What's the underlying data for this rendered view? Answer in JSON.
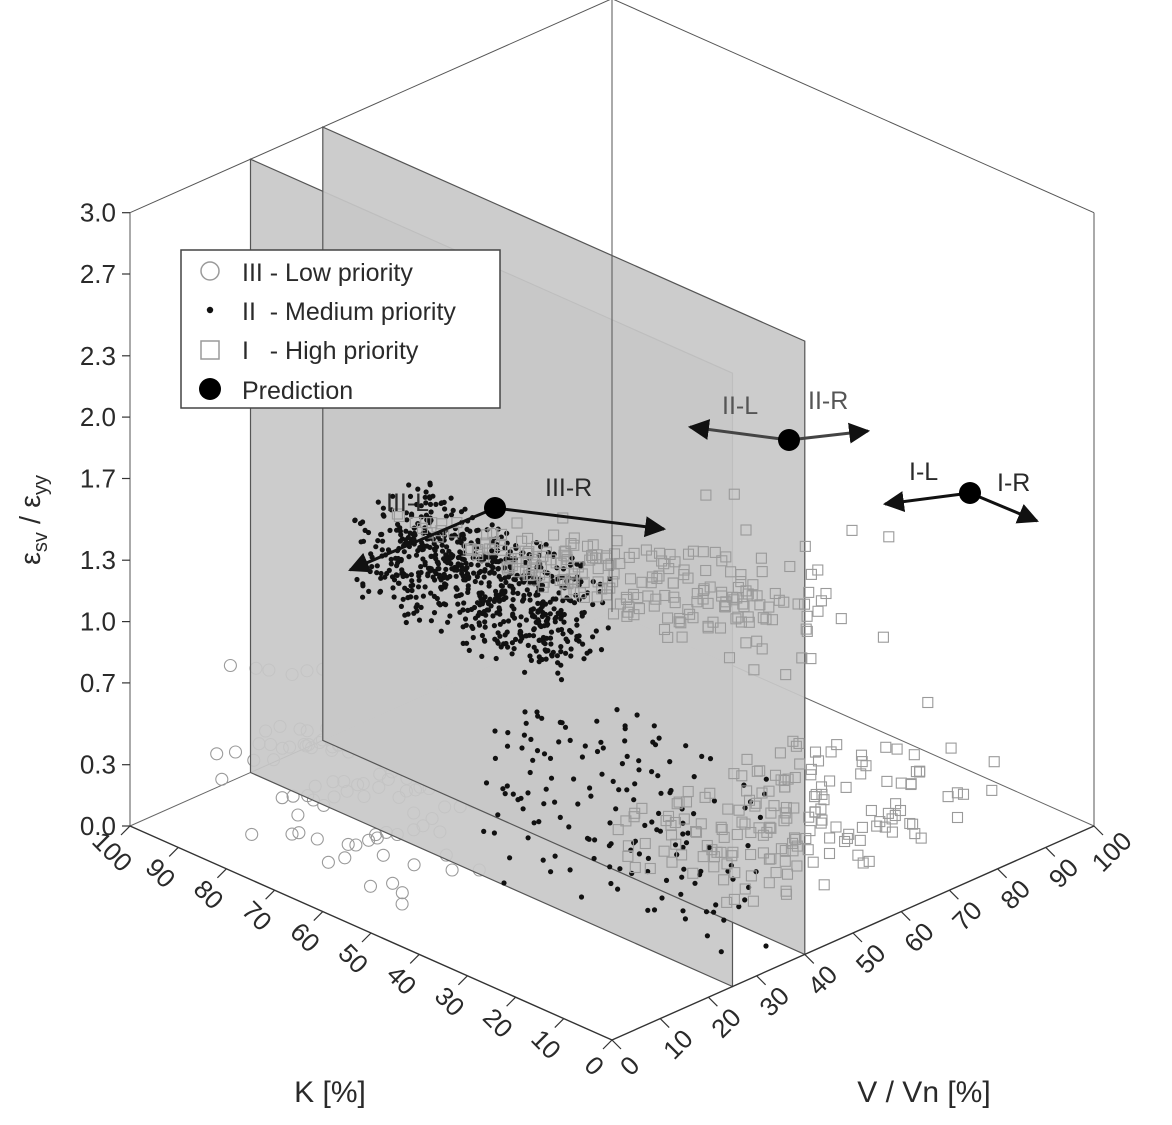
{
  "chart_data": {
    "type": "scatter",
    "projection": "3d-isometric",
    "zlabel": {
      "main": "ε",
      "sub1": "sv",
      "sep": " / ε",
      "sub2": "yy"
    },
    "xlabel": "K [%]",
    "ylabel": "V / Vn [%]",
    "z_ticks": [
      "0.0",
      "0.3",
      "0.7",
      "1.0",
      "1.3",
      "1.7",
      "2.0",
      "2.3",
      "2.7",
      "3.0"
    ],
    "k_ticks": [
      "0",
      "10",
      "20",
      "30",
      "40",
      "50",
      "60",
      "70",
      "80",
      "90",
      "100"
    ],
    "v_ticks": [
      "0",
      "10",
      "20",
      "30",
      "40",
      "50",
      "60",
      "70",
      "80",
      "90",
      "100"
    ],
    "zlim": [
      0,
      3.0
    ],
    "klim": [
      0,
      100
    ],
    "vlim": [
      0,
      100
    ],
    "boundary_planes_v": [
      25,
      40
    ],
    "legend": {
      "position": "top-left",
      "entries": [
        {
          "label": "III - Low priority",
          "marker": "open-circle",
          "color": "#9a9a9a"
        },
        {
          "label": "II  - Medium priority",
          "marker": "small-dot",
          "color": "#111111"
        },
        {
          "label": "I   - High priority",
          "marker": "open-square",
          "color": "#9a9a9a"
        },
        {
          "label": "Prediction",
          "marker": "filled-circle",
          "color": "#000000"
        }
      ]
    },
    "predictions": [
      {
        "name": "III",
        "labels": [
          "III-L",
          "III-R"
        ]
      },
      {
        "name": "II",
        "labels": [
          "II-L",
          "II-R"
        ]
      },
      {
        "name": "I",
        "labels": [
          "I-L",
          "I-R"
        ]
      }
    ],
    "series": [
      {
        "name": "III - Low priority",
        "v_range": [
          0,
          25
        ],
        "k_range": [
          20,
          100
        ],
        "z_range": [
          0.05,
          1.3
        ]
      },
      {
        "name": "II  - Medium priority",
        "v_range": [
          25,
          40
        ],
        "k_range": [
          0,
          100
        ],
        "z_range": [
          0.0,
          1.5
        ]
      },
      {
        "name": "I   - High priority",
        "v_range": [
          40,
          100
        ],
        "k_range": [
          0,
          100
        ],
        "z_range": [
          0.0,
          1.3
        ]
      }
    ]
  }
}
